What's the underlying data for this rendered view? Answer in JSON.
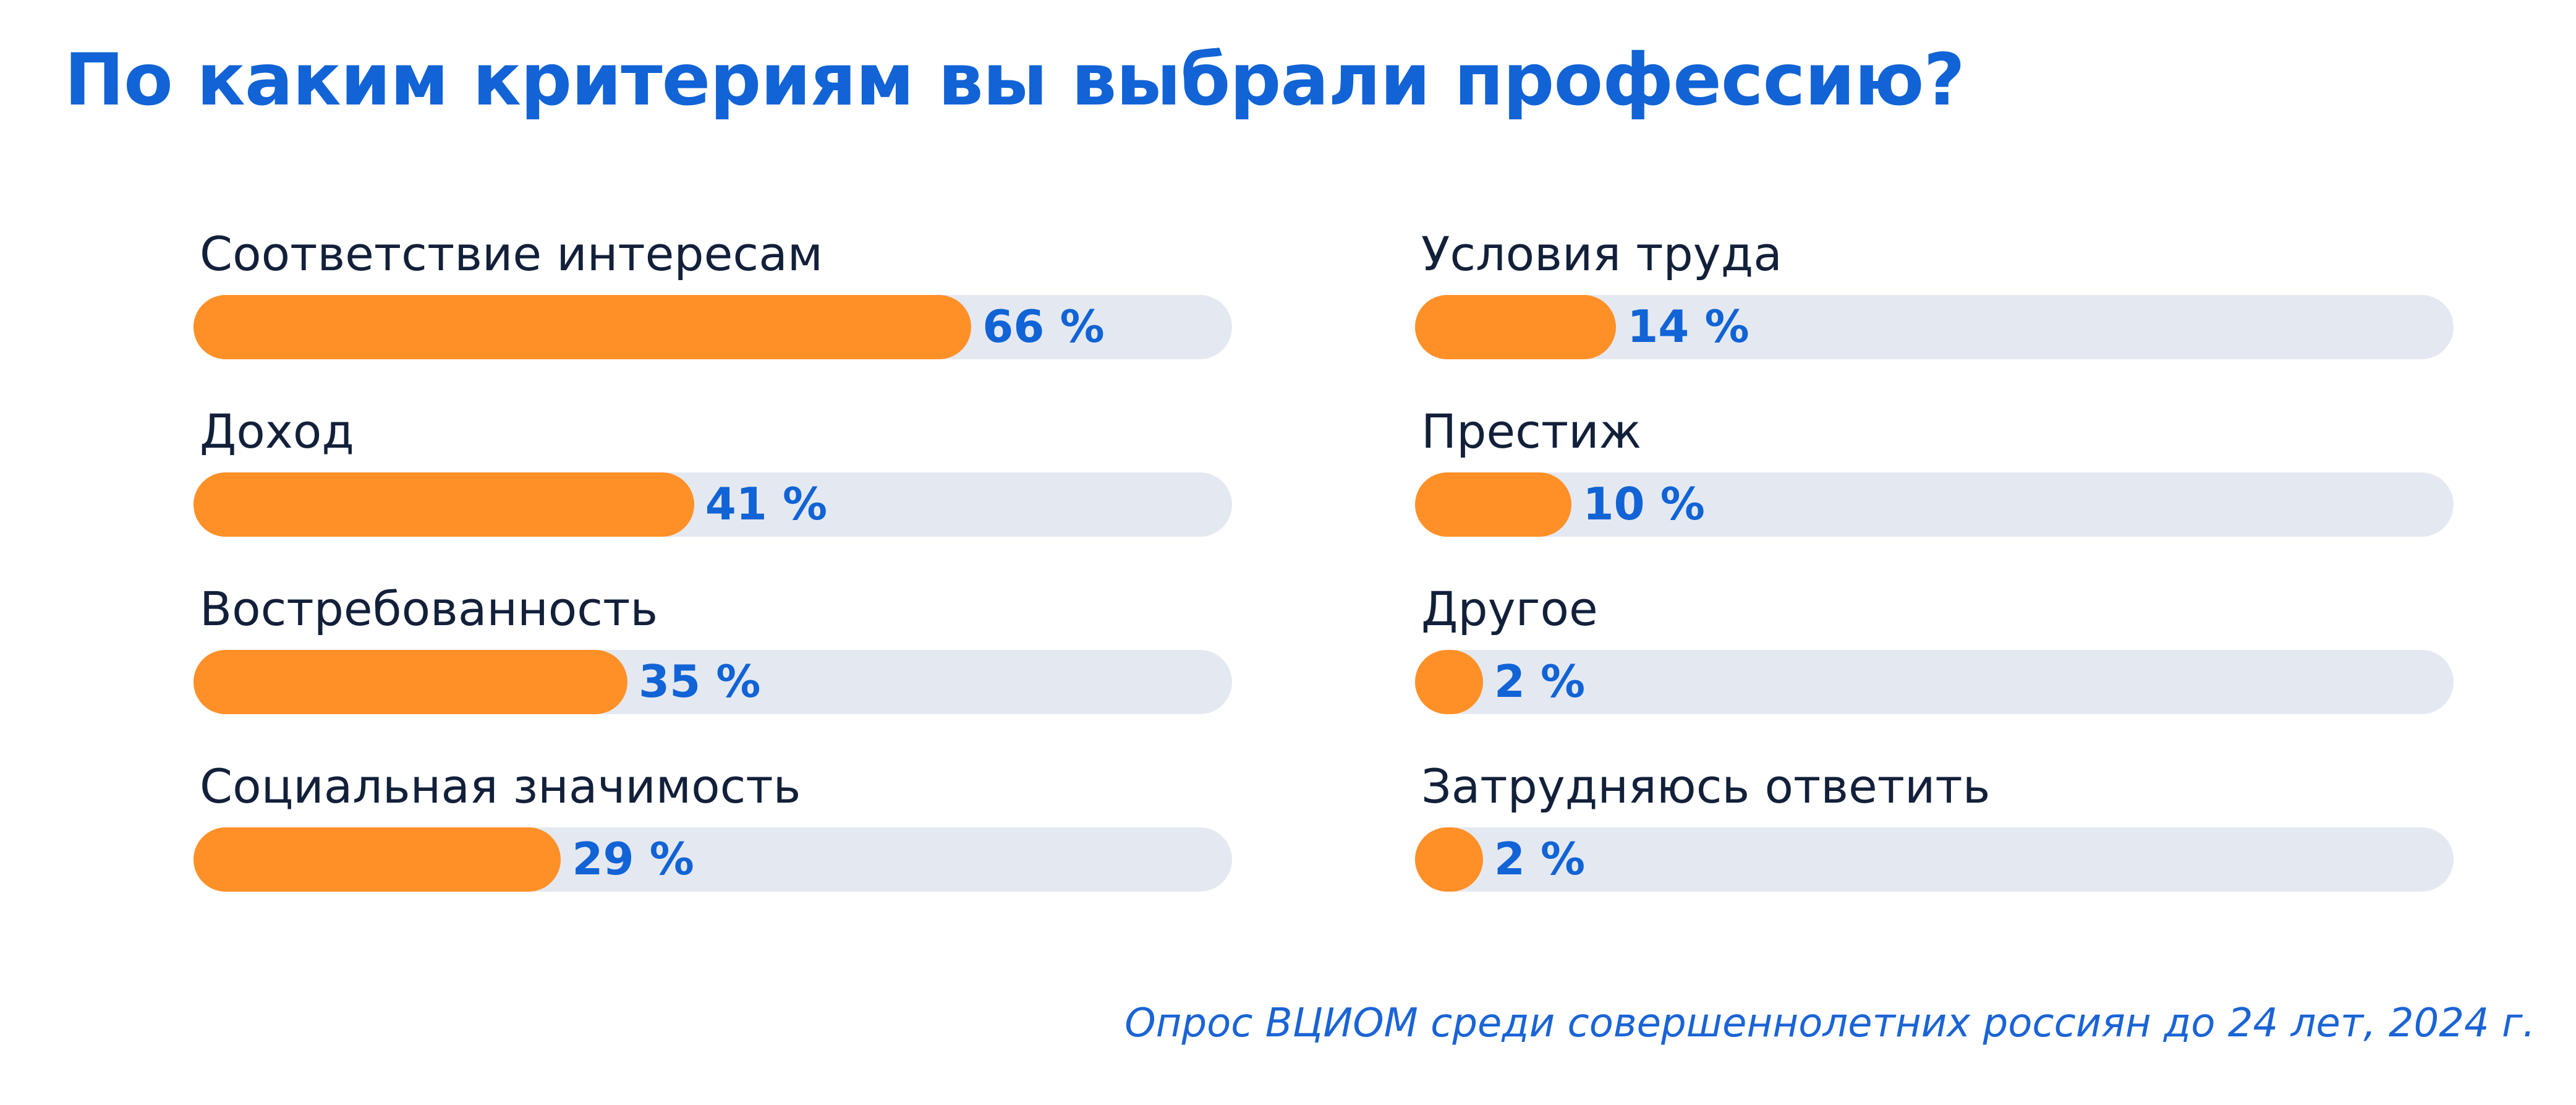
{
  "title": "По каким критериям вы выбрали профессию?",
  "source": "Опрос ВЦИОМ среди совершеннолетних россиян до 24 лет, 2024 г.",
  "colors": {
    "title": "#1163d6",
    "fill": "#ff9027",
    "track": "#e4e9f1",
    "value": "#1163d6",
    "label": "#12203a"
  },
  "chart_data": {
    "type": "bar",
    "orientation": "horizontal",
    "title": "По каким критериям вы выбрали профессию?",
    "xlim": [
      0,
      100
    ],
    "unit": "%",
    "grid": false,
    "legend": "none",
    "categories": [
      "Соответствие интересам",
      "Доход",
      "Востребованность",
      "Социальная значимость",
      "Условия труда",
      "Престиж",
      "Другое",
      "Затрудняюсь ответить"
    ],
    "values": [
      66,
      41,
      35,
      29,
      14,
      10,
      2,
      2
    ],
    "value_labels": [
      "66 %",
      "41 %",
      "35 %",
      "29 %",
      "14 %",
      "10 %",
      "2 %",
      "2 %"
    ]
  }
}
